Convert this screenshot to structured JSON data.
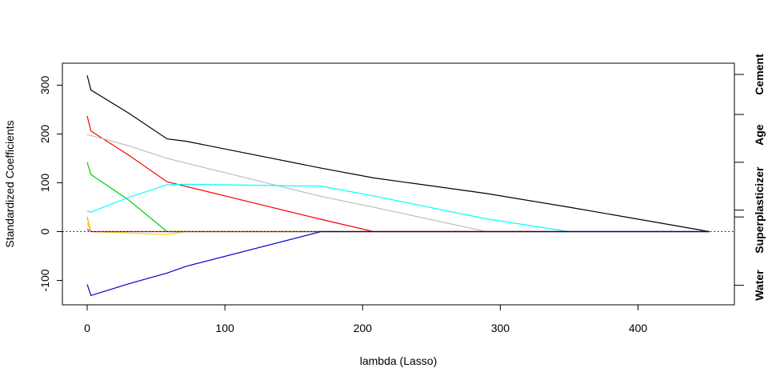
{
  "chart_data": {
    "type": "line",
    "title": "",
    "xlabel": "lambda (Lasso)",
    "ylabel": "Standardized Coefficients",
    "xlim": [
      -18,
      470
    ],
    "ylim": [
      -150,
      345
    ],
    "xticks": [
      0,
      100,
      200,
      300,
      400
    ],
    "yticks": [
      -100,
      0,
      100,
      200,
      300
    ],
    "zero_line": {
      "y": 0,
      "style": "dotted"
    },
    "grid": false,
    "legend": "none",
    "right_axis": {
      "ticks": [
        322,
        240,
        142,
        44,
        30,
        -110
      ],
      "labels": [
        {
          "text": "Cement",
          "y": 322
        },
        {
          "text": "Age",
          "y": 198
        },
        {
          "text": "Superplasticizer",
          "y": 44
        },
        {
          "text": "Water",
          "y": -110
        }
      ]
    },
    "series": [
      {
        "color": "#000000",
        "points": [
          [
            0,
            320
          ],
          [
            2.7,
            290
          ],
          [
            30,
            243
          ],
          [
            58,
            190
          ],
          [
            72,
            185
          ],
          [
            170,
            130
          ],
          [
            208,
            110
          ],
          [
            290,
            78
          ],
          [
            350,
            50
          ],
          [
            452,
            0
          ]
        ]
      },
      {
        "color": "#ff0000",
        "points": [
          [
            0,
            237
          ],
          [
            2.7,
            206
          ],
          [
            30,
            157
          ],
          [
            58,
            102
          ],
          [
            170,
            25
          ],
          [
            208,
            0
          ],
          [
            452,
            0
          ]
        ]
      },
      {
        "color": "#bebebe",
        "points": [
          [
            0,
            198
          ],
          [
            2.7,
            197
          ],
          [
            30,
            176
          ],
          [
            58,
            150
          ],
          [
            170,
            72
          ],
          [
            208,
            50
          ],
          [
            290,
            0
          ],
          [
            452,
            0
          ]
        ]
      },
      {
        "color": "#00cd00",
        "points": [
          [
            0,
            142
          ],
          [
            2.7,
            117
          ],
          [
            30,
            65
          ],
          [
            58,
            0
          ],
          [
            452,
            0
          ]
        ]
      },
      {
        "color": "#00ffff",
        "points": [
          [
            0,
            42
          ],
          [
            2.7,
            40
          ],
          [
            30,
            70
          ],
          [
            58,
            96
          ],
          [
            72,
            97
          ],
          [
            170,
            93
          ],
          [
            208,
            73
          ],
          [
            290,
            26
          ],
          [
            350,
            0
          ],
          [
            452,
            0
          ]
        ]
      },
      {
        "color": "#ffa500",
        "points": [
          [
            0,
            30
          ],
          [
            2.7,
            0
          ],
          [
            452,
            0
          ]
        ]
      },
      {
        "color": "#ffd700",
        "points": [
          [
            0,
            18
          ],
          [
            2.7,
            0
          ],
          [
            30,
            -3
          ],
          [
            58,
            -6
          ],
          [
            72,
            0
          ],
          [
            452,
            0
          ]
        ]
      },
      {
        "color": "#a020f0",
        "points": [
          [
            0,
            5
          ],
          [
            2.7,
            0
          ],
          [
            452,
            0
          ]
        ]
      },
      {
        "color": "#0000cd",
        "points": [
          [
            0,
            -108
          ],
          [
            2.7,
            -131
          ],
          [
            30,
            -107
          ],
          [
            58,
            -85
          ],
          [
            72,
            -71
          ],
          [
            170,
            0
          ],
          [
            452,
            0
          ]
        ]
      }
    ]
  }
}
